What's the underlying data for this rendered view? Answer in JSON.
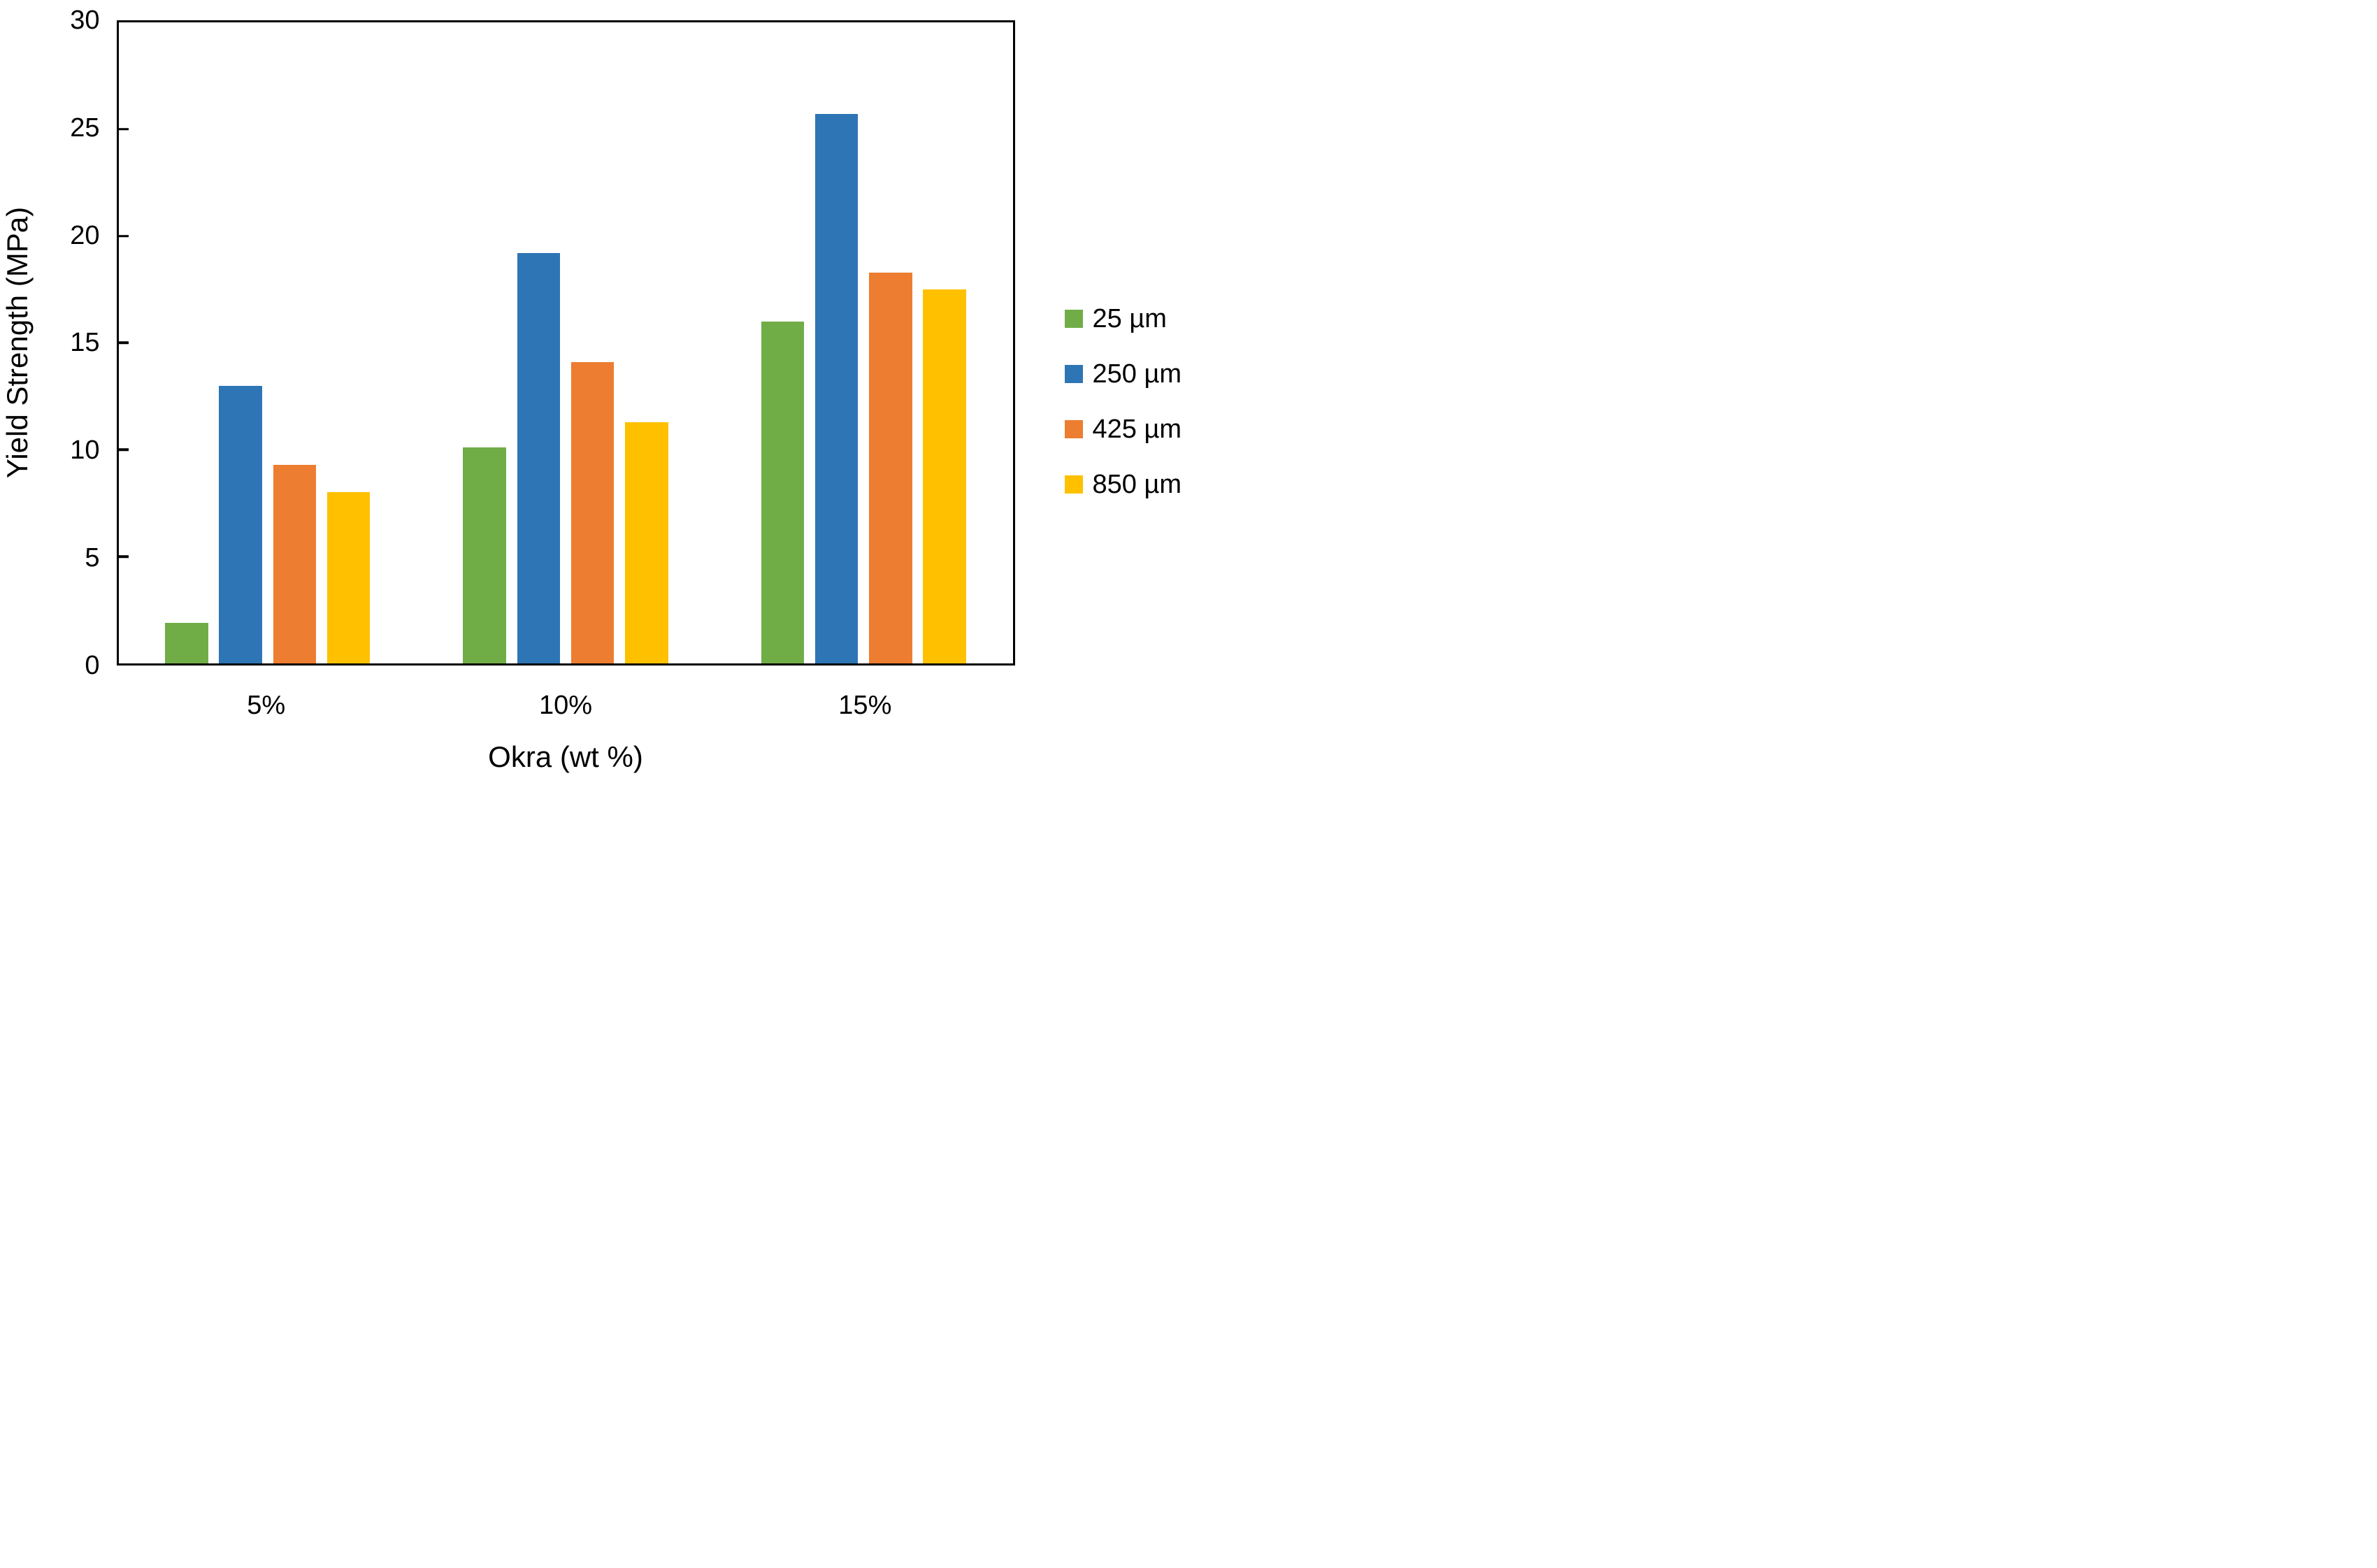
{
  "chart_data": {
    "type": "bar",
    "title": "",
    "xlabel": "Okra (wt %)",
    "ylabel": "Yield Strength (MPa)",
    "categories": [
      "5%",
      "10%",
      "15%"
    ],
    "series": [
      {
        "name": "25 µm",
        "color": "#70AD47",
        "values": [
          1.9,
          10.1,
          16.0
        ]
      },
      {
        "name": "250 µm",
        "color": "#2E75B6",
        "values": [
          13.0,
          19.2,
          25.7
        ]
      },
      {
        "name": "425 µm",
        "color": "#ED7D31",
        "values": [
          9.3,
          14.1,
          18.3
        ]
      },
      {
        "name": "850 µm",
        "color": "#FFC000",
        "values": [
          8.0,
          11.3,
          17.5
        ]
      }
    ],
    "ylim": [
      0,
      30
    ],
    "yticks": [
      0,
      5,
      10,
      15,
      20,
      25,
      30
    ],
    "grid": false,
    "plot_border": "box",
    "tick_direction": "in",
    "legend_position": "right-middle",
    "axis_color": "#000000",
    "background_color": "#FFFFFF"
  }
}
